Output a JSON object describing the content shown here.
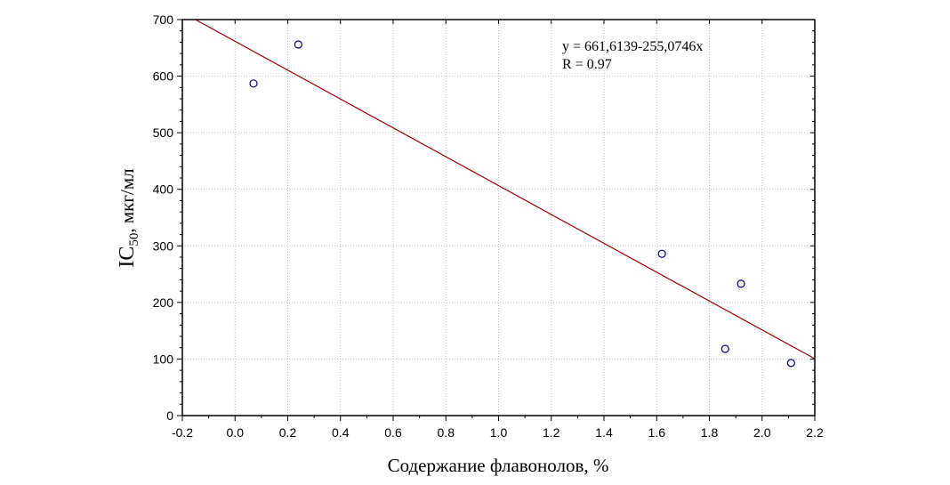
{
  "chart_data": {
    "type": "scatter",
    "xlabel": "Содержание флавонолов, %",
    "ylabel_main": "IC",
    "ylabel_sub": "50",
    "ylabel_rest": ", мкг/мл",
    "xlim": [
      -0.2,
      2.2
    ],
    "ylim": [
      0,
      700
    ],
    "xticks": [
      "-0.2",
      "0.0",
      "0.2",
      "0.4",
      "0.6",
      "0.8",
      "1.0",
      "1.2",
      "1.4",
      "1.6",
      "1.8",
      "2.0",
      "2.2"
    ],
    "yticks": [
      "0",
      "100",
      "200",
      "300",
      "400",
      "500",
      "600",
      "700"
    ],
    "grid": true,
    "points": [
      {
        "x": 0.07,
        "y": 587
      },
      {
        "x": 0.24,
        "y": 656
      },
      {
        "x": 1.62,
        "y": 286
      },
      {
        "x": 1.86,
        "y": 118
      },
      {
        "x": 1.92,
        "y": 233
      },
      {
        "x": 2.11,
        "y": 93
      }
    ],
    "fit": {
      "intercept": 661.6139,
      "slope": -255.0746
    },
    "annotations": [
      "y = 661,6139-255,0746x",
      "R = 0.97"
    ],
    "colors": {
      "points": "#00007f",
      "fit": "#a00000",
      "grid": "#bbbbbb"
    }
  }
}
